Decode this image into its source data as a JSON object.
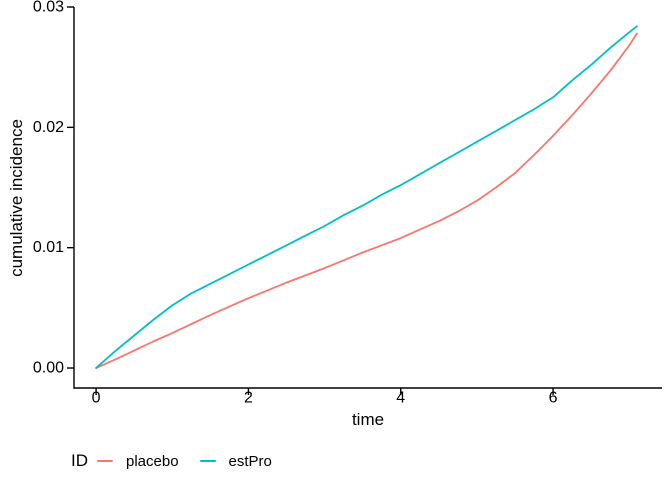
{
  "axes": {
    "x_label": "time",
    "y_label": "cumulative incidence"
  },
  "legend": {
    "title": "ID",
    "items": [
      {
        "label": "placebo",
        "color": "#F8766D"
      },
      {
        "label": "estPro",
        "color": "#00BFC4"
      }
    ]
  },
  "chart_data": {
    "type": "line",
    "title": "",
    "xlabel": "time",
    "ylabel": "cumulative incidence",
    "xlim": [
      -0.29,
      7.43
    ],
    "ylim": [
      -0.00166,
      0.03
    ],
    "grid": false,
    "legend_position": "bottom-left",
    "axis_color": "#000000",
    "text_color": "#000000",
    "x_ticks": [
      {
        "value": 0,
        "label": "0"
      },
      {
        "value": 2,
        "label": "2"
      },
      {
        "value": 4,
        "label": "4"
      },
      {
        "value": 6,
        "label": "6"
      }
    ],
    "y_ticks": [
      {
        "value": 0.0,
        "label": "0.00"
      },
      {
        "value": 0.01,
        "label": "0.01"
      },
      {
        "value": 0.02,
        "label": "0.02"
      },
      {
        "value": 0.03,
        "label": "0.03"
      }
    ],
    "series": [
      {
        "name": "placebo",
        "color": "#F8766D",
        "points": [
          [
            0,
            0.0
          ],
          [
            0.25,
            0.0007
          ],
          [
            0.5,
            0.00145
          ],
          [
            0.75,
            0.0022
          ],
          [
            1,
            0.0029
          ],
          [
            1.25,
            0.00365
          ],
          [
            1.5,
            0.0044
          ],
          [
            1.75,
            0.0051
          ],
          [
            2,
            0.0058
          ],
          [
            2.25,
            0.00645
          ],
          [
            2.5,
            0.0071
          ],
          [
            2.75,
            0.0077
          ],
          [
            3,
            0.0083
          ],
          [
            3.25,
            0.00895
          ],
          [
            3.5,
            0.0096
          ],
          [
            3.75,
            0.0102
          ],
          [
            4,
            0.0108
          ],
          [
            4.25,
            0.0115
          ],
          [
            4.5,
            0.0122
          ],
          [
            4.75,
            0.013
          ],
          [
            5,
            0.0139
          ],
          [
            5.25,
            0.015
          ],
          [
            5.5,
            0.0162
          ],
          [
            5.75,
            0.0177
          ],
          [
            6,
            0.0193
          ],
          [
            6.25,
            0.021
          ],
          [
            6.5,
            0.0228
          ],
          [
            6.75,
            0.0247
          ],
          [
            7,
            0.0268
          ],
          [
            7.1,
            0.0278
          ]
        ]
      },
      {
        "name": "estPro",
        "color": "#00BFC4",
        "points": [
          [
            0,
            0.0
          ],
          [
            0.25,
            0.0014
          ],
          [
            0.5,
            0.0027
          ],
          [
            0.75,
            0.004
          ],
          [
            1,
            0.0052
          ],
          [
            1.25,
            0.0062
          ],
          [
            1.5,
            0.007
          ],
          [
            1.75,
            0.0078
          ],
          [
            2,
            0.0086
          ],
          [
            2.25,
            0.0094
          ],
          [
            2.5,
            0.0102
          ],
          [
            2.75,
            0.011
          ],
          [
            3,
            0.0118
          ],
          [
            3.25,
            0.0127
          ],
          [
            3.5,
            0.0135
          ],
          [
            3.75,
            0.0144
          ],
          [
            4,
            0.0152
          ],
          [
            4.25,
            0.0161
          ],
          [
            4.5,
            0.017
          ],
          [
            4.75,
            0.0179
          ],
          [
            5,
            0.0188
          ],
          [
            5.25,
            0.0197
          ],
          [
            5.5,
            0.0206
          ],
          [
            5.75,
            0.0215
          ],
          [
            6,
            0.0225
          ],
          [
            6.25,
            0.0239
          ],
          [
            6.5,
            0.0252
          ],
          [
            6.75,
            0.0266
          ],
          [
            7,
            0.0279
          ],
          [
            7.1,
            0.0284
          ]
        ]
      }
    ]
  }
}
